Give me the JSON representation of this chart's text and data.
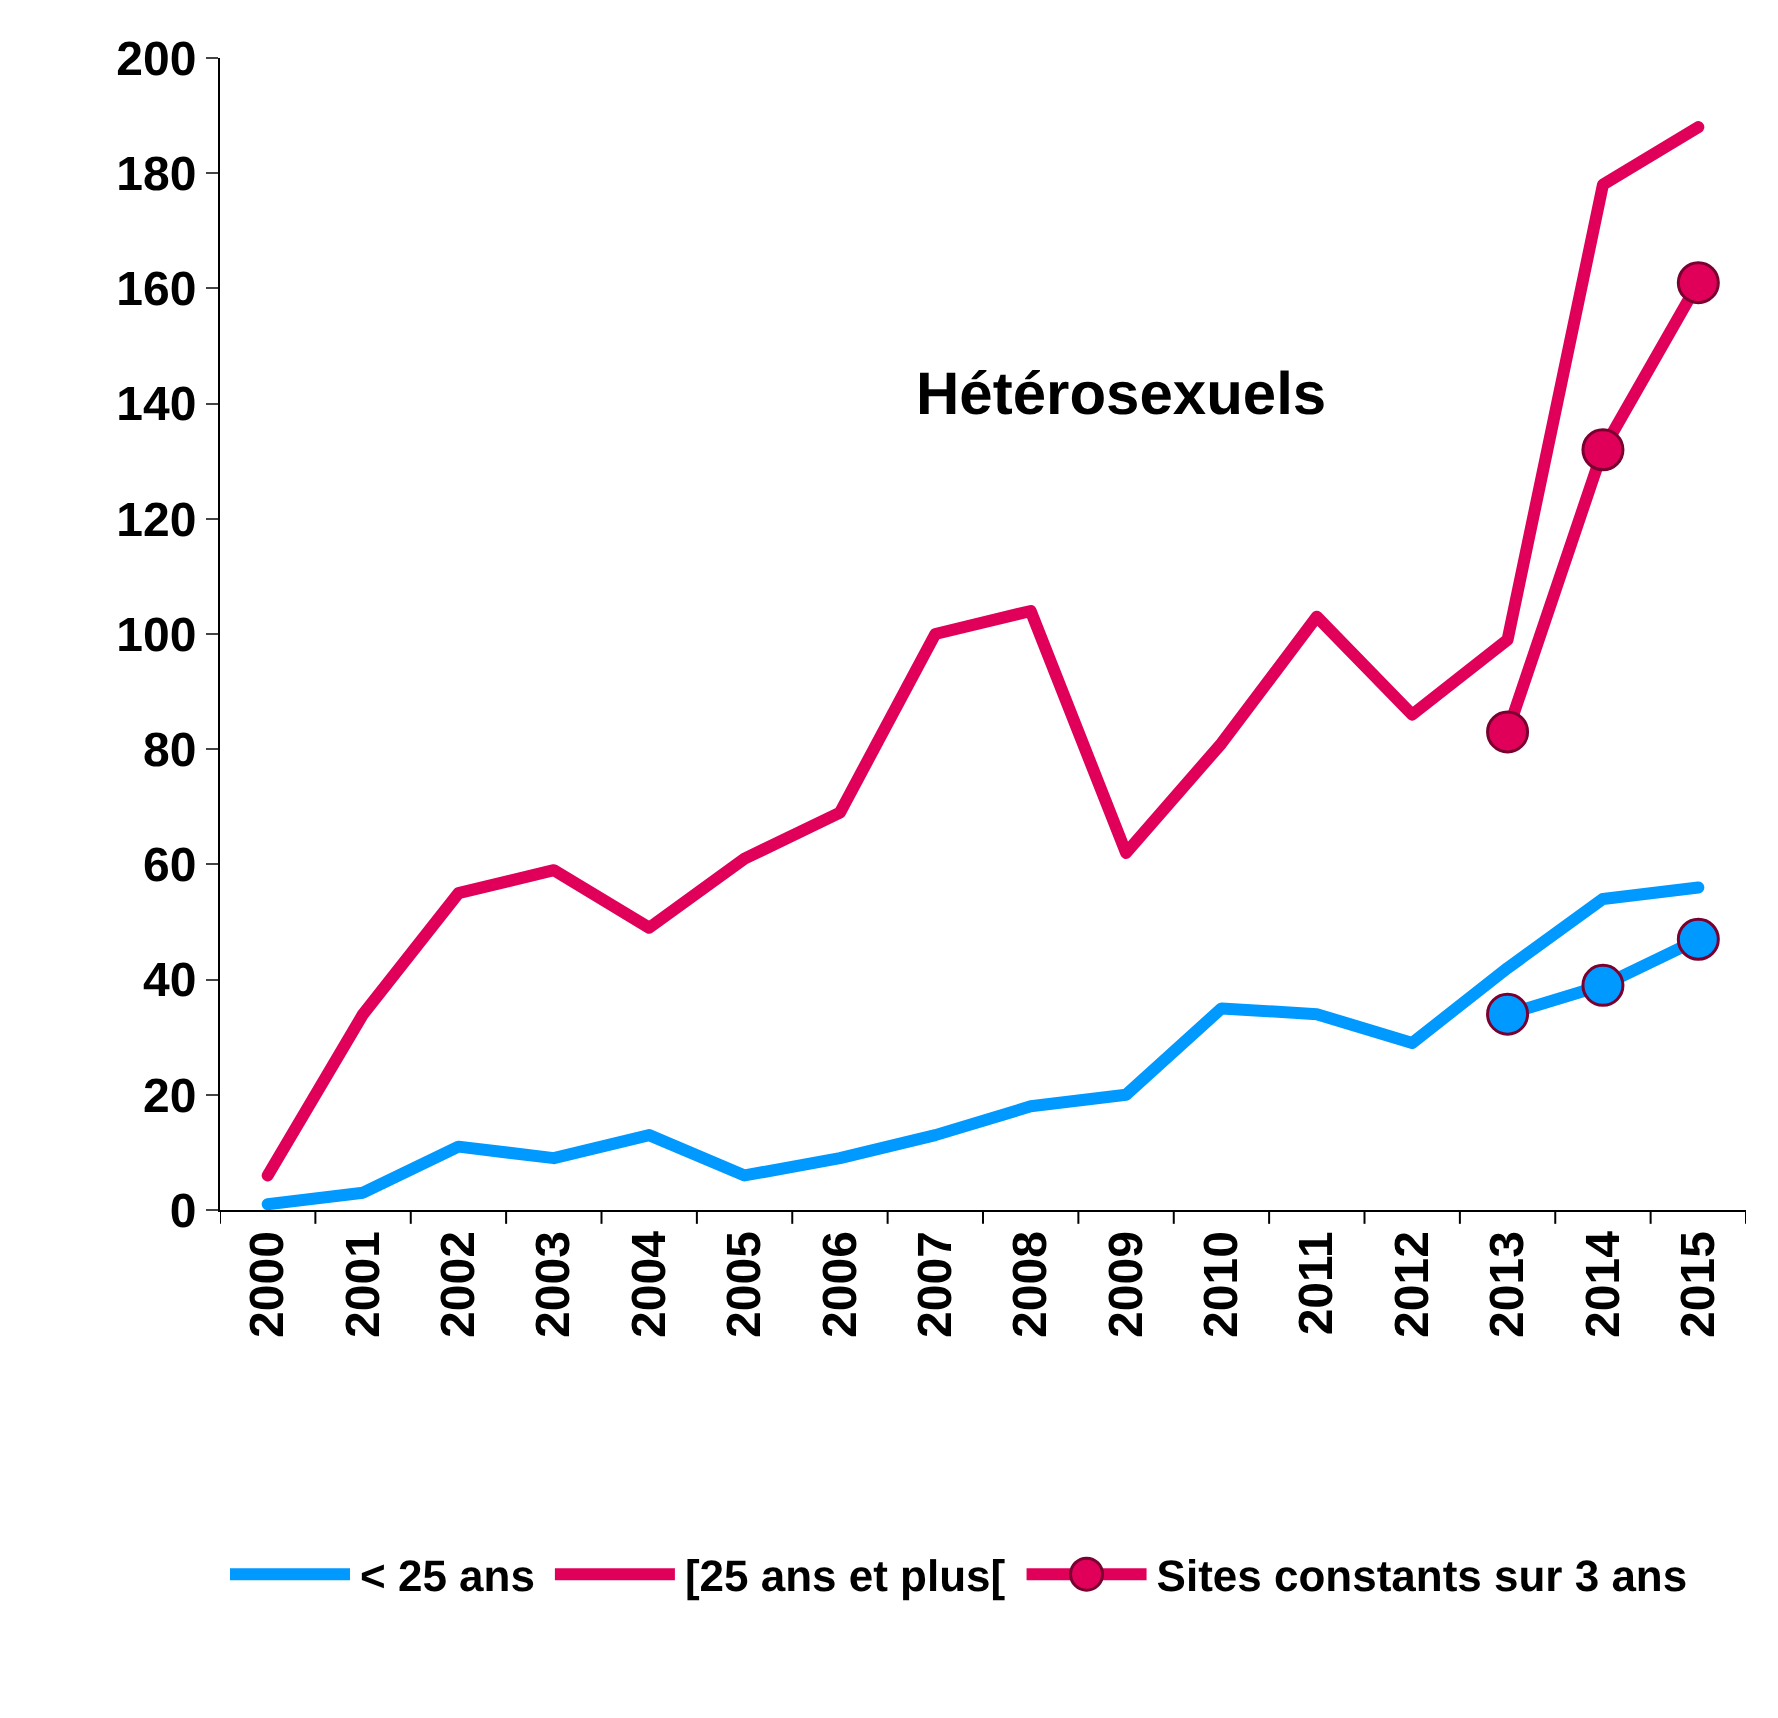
{
  "chart_data": {
    "type": "line",
    "title": "Hétérosexuels",
    "categories": [
      "2000",
      "2001",
      "2002",
      "2003",
      "2004",
      "2005",
      "2006",
      "2007",
      "2008",
      "2009",
      "2010",
      "2011",
      "2012",
      "2013",
      "2014",
      "2015"
    ],
    "series": [
      {
        "name": "< 25 ans",
        "color": "#0099ff",
        "values": [
          1,
          3,
          11,
          9,
          13,
          6,
          9,
          13,
          18,
          20,
          35,
          34,
          29,
          42,
          54,
          56
        ]
      },
      {
        "name": "[25 ans et plus[",
        "color": "#e0005a",
        "values": [
          6,
          34,
          55,
          59,
          49,
          61,
          69,
          100,
          104,
          62,
          81,
          103,
          86,
          99,
          178,
          188
        ]
      },
      {
        "name": "Sites constants sur 3 ans",
        "color": "#e0005a",
        "marker": "circle",
        "values": [
          null,
          null,
          null,
          null,
          null,
          null,
          null,
          null,
          null,
          null,
          null,
          null,
          null,
          83,
          132,
          161
        ]
      },
      {
        "color": "#0099ff",
        "marker": "circle",
        "values": [
          null,
          null,
          null,
          null,
          null,
          null,
          null,
          null,
          null,
          null,
          null,
          null,
          null,
          34,
          39,
          47
        ]
      }
    ],
    "ylim": [
      0,
      200
    ],
    "yticks": [
      0,
      20,
      40,
      60,
      80,
      100,
      120,
      140,
      160,
      180,
      200
    ],
    "grid": false,
    "legend": "bottom"
  }
}
